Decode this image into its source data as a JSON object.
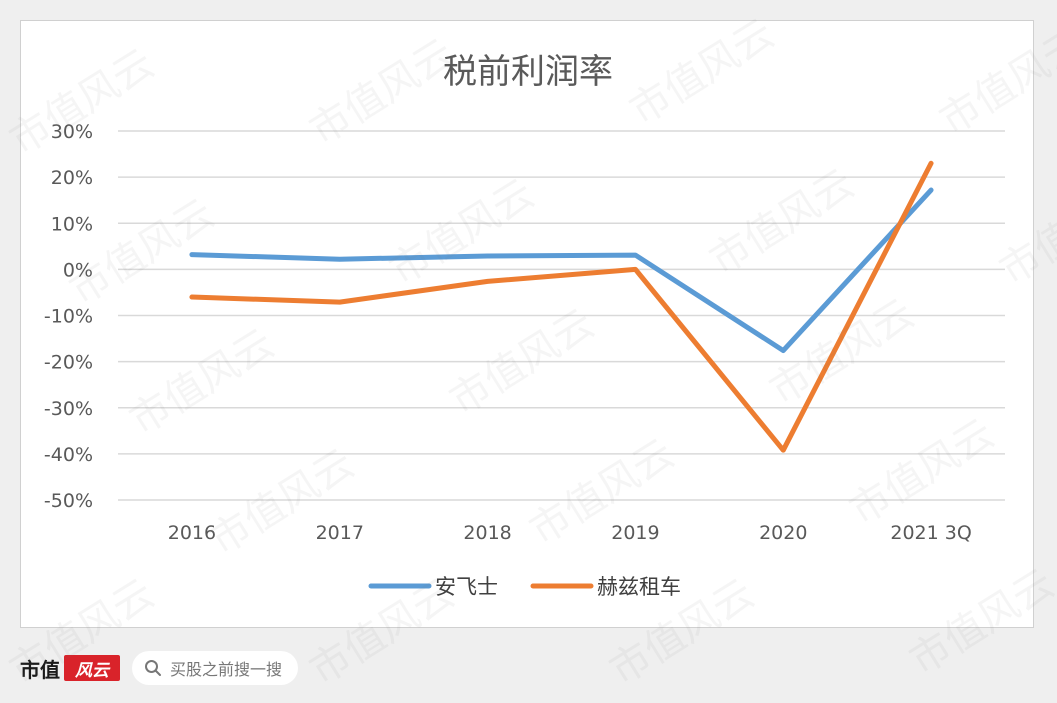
{
  "watermark": "市值风云",
  "footer": {
    "brand": "市值",
    "brand_seal": "风云",
    "search_placeholder": "买股之前搜一搜"
  },
  "colors": {
    "series_1": "#5b9bd5",
    "series_2": "#ed7d31",
    "grid": "#d9d9d9"
  },
  "chart_data": {
    "type": "line",
    "title": "税前利润率",
    "categories": [
      "2016",
      "2017",
      "2018",
      "2019",
      "2020",
      "2021 3Q"
    ],
    "y_ticks": [
      "30%",
      "20%",
      "10%",
      "0%",
      "-10%",
      "-20%",
      "-30%",
      "-40%",
      "-50%"
    ],
    "ylim": [
      -50,
      30
    ],
    "yunit": "%",
    "grid": true,
    "legend_position": "bottom",
    "series": [
      {
        "name": "安飞士",
        "values": [
          3.2,
          2.2,
          2.9,
          3.1,
          -17.6,
          17.2
        ]
      },
      {
        "name": "赫兹租车",
        "values": [
          -6.0,
          -7.1,
          -2.6,
          0.0,
          -39.2,
          23.0
        ]
      }
    ]
  }
}
